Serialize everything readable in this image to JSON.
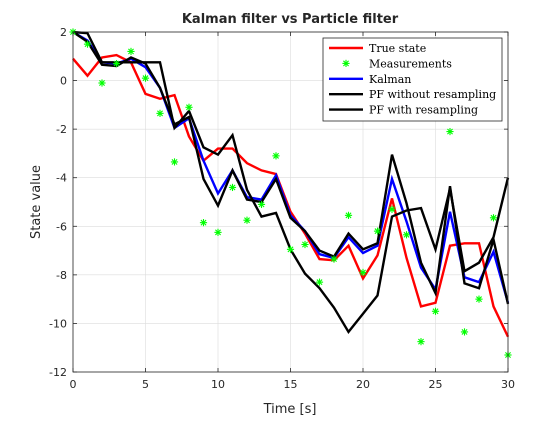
{
  "chart_data": {
    "type": "line",
    "title": "Kalman filter vs Particle filter",
    "xlabel": "Time [s]",
    "ylabel": "State value",
    "xlim": [
      0,
      30
    ],
    "ylim": [
      -12,
      2
    ],
    "xticks": [
      "0",
      "5",
      "10",
      "15",
      "20",
      "25",
      "30"
    ],
    "yticks": [
      "2",
      "0",
      "-2",
      "-4",
      "-6",
      "-8",
      "-10",
      "-12"
    ],
    "grid": true,
    "legend_position": "top-right",
    "x": [
      0,
      1,
      2,
      3,
      4,
      5,
      6,
      7,
      8,
      9,
      10,
      11,
      12,
      13,
      14,
      15,
      16,
      17,
      18,
      19,
      20,
      21,
      22,
      23,
      24,
      25,
      26,
      27,
      28,
      29,
      30
    ],
    "series": [
      {
        "name": "True state",
        "style": "line",
        "color": "#ff0000",
        "values": [
          0.9,
          0.2,
          0.95,
          1.05,
          0.75,
          -0.55,
          -0.75,
          -0.6,
          -2.3,
          -3.3,
          -2.8,
          -2.8,
          -3.4,
          -3.7,
          -3.85,
          -5.4,
          -6.3,
          -7.35,
          -7.4,
          -6.8,
          -8.15,
          -7.2,
          -4.85,
          -7.3,
          -9.3,
          -9.15,
          -6.8,
          -6.7,
          -6.7,
          -9.3,
          -10.55
        ]
      },
      {
        "name": "Measurements",
        "style": "markers",
        "marker": "*",
        "color": "#00ff00",
        "values": [
          2.0,
          1.5,
          -0.1,
          0.7,
          1.2,
          0.1,
          -1.35,
          -3.35,
          -1.1,
          -5.85,
          -6.25,
          -4.4,
          -5.75,
          -5.1,
          -3.1,
          -6.95,
          -6.75,
          -8.3,
          -7.35,
          -5.55,
          -7.9,
          -6.2,
          -5.3,
          -6.35,
          -10.75,
          -9.5,
          -2.1,
          -10.35,
          -9.0,
          -5.65,
          -11.3
        ]
      },
      {
        "name": "Kalman",
        "style": "line",
        "color": "#0000ff",
        "values": [
          2.0,
          1.65,
          0.75,
          0.7,
          0.9,
          0.55,
          -0.3,
          -1.95,
          -1.55,
          -3.3,
          -4.65,
          -3.7,
          -4.8,
          -4.9,
          -3.9,
          -5.55,
          -6.2,
          -7.15,
          -7.3,
          -6.45,
          -7.1,
          -6.8,
          -4.05,
          -5.8,
          -7.7,
          -8.6,
          -5.4,
          -8.1,
          -8.3,
          -7.05,
          -9.15
        ]
      },
      {
        "name": "PF without resampling",
        "style": "line",
        "color": "#000000",
        "values": [
          2.0,
          1.6,
          0.65,
          0.6,
          0.95,
          0.7,
          -0.3,
          -1.8,
          -1.5,
          -4.05,
          -5.15,
          -3.7,
          -4.9,
          -5.0,
          -4.05,
          -5.65,
          -6.2,
          -7.0,
          -7.25,
          -6.3,
          -6.95,
          -6.7,
          -3.05,
          -5.05,
          -7.5,
          -8.75,
          -4.35,
          -8.35,
          -8.55,
          -6.55,
          -9.2
        ]
      },
      {
        "name": "PF with resampling",
        "style": "line",
        "color": "#000000",
        "values": [
          2.0,
          1.95,
          0.75,
          0.75,
          0.75,
          0.75,
          0.75,
          -1.95,
          -1.25,
          -2.75,
          -3.05,
          -2.25,
          -4.5,
          -5.6,
          -5.45,
          -6.95,
          -7.95,
          -8.55,
          -9.35,
          -10.35,
          -9.6,
          -8.85,
          -5.6,
          -5.35,
          -5.25,
          -6.95,
          -4.45,
          -7.85,
          -7.5,
          -6.45,
          -4.0
        ]
      }
    ]
  }
}
